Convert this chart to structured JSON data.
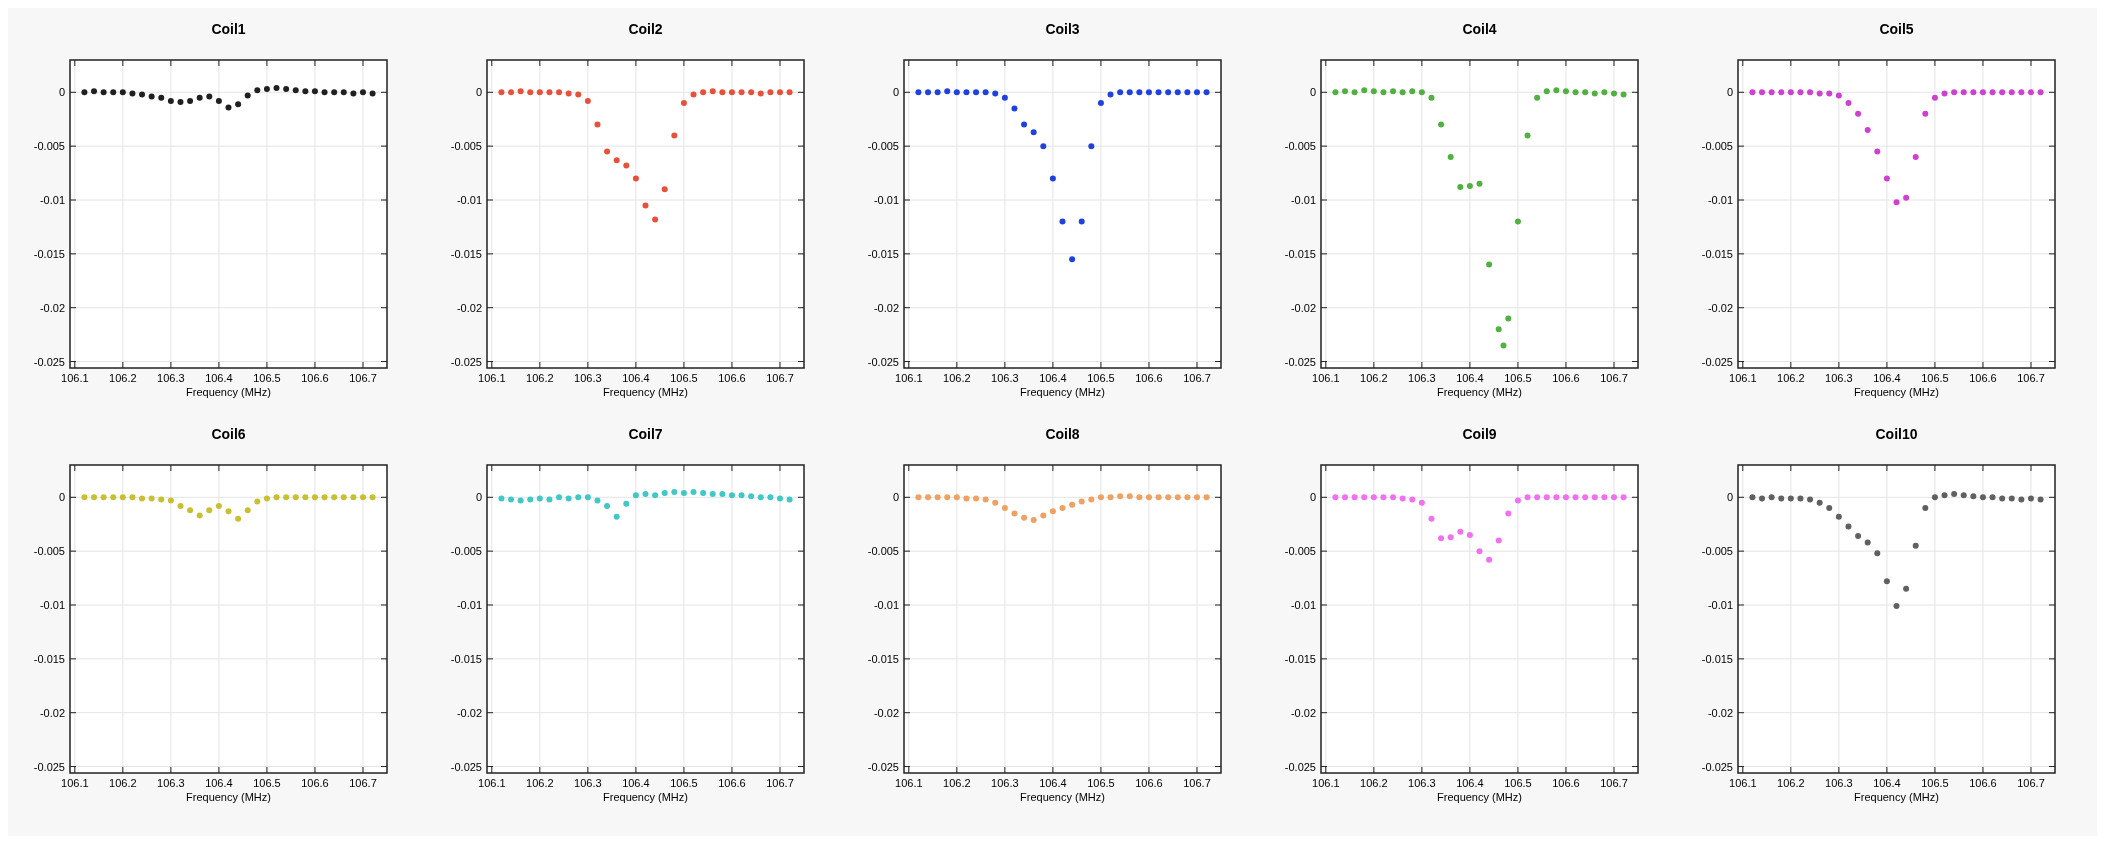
{
  "chart_data": [
    {
      "type": "scatter",
      "title": "Coil1",
      "xlabel": "Frequency (MHz)",
      "marker": "circle",
      "grid": true,
      "xlim": [
        106.09,
        106.75
      ],
      "ylim": [
        -0.0256,
        0.003
      ],
      "xticks": [
        106.1,
        106.2,
        106.3,
        106.4,
        106.5,
        106.6,
        106.7
      ],
      "yticks": [
        0,
        -0.005,
        -0.01,
        -0.015,
        -0.02,
        -0.025
      ],
      "x": [
        106.12,
        106.14,
        106.16,
        106.18,
        106.2,
        106.22,
        106.24,
        106.26,
        106.28,
        106.3,
        106.32,
        106.34,
        106.36,
        106.38,
        106.4,
        106.42,
        106.44,
        106.46,
        106.48,
        106.5,
        106.52,
        106.54,
        106.56,
        106.58,
        106.6,
        106.62,
        106.64,
        106.66,
        106.68,
        106.7,
        106.72
      ],
      "series": [
        {
          "color": "#202020",
          "values": [
            0,
            0.0001,
            0,
            0,
            0,
            -0.0001,
            -0.0002,
            -0.0004,
            -0.0005,
            -0.0008,
            -0.0009,
            -0.0008,
            -0.0005,
            -0.0004,
            -0.0008,
            -0.0014,
            -0.0011,
            -0.0003,
            0.0002,
            0.0003,
            0.0004,
            0.0003,
            0.0002,
            0.0001,
            0.0001,
            0,
            0,
            0,
            -0.0001,
            0,
            -0.0001
          ]
        }
      ]
    },
    {
      "type": "scatter",
      "title": "Coil2",
      "xlabel": "Frequency (MHz)",
      "marker": "circle",
      "grid": true,
      "xlim": [
        106.09,
        106.75
      ],
      "ylim": [
        -0.0256,
        0.003
      ],
      "xticks": [
        106.1,
        106.2,
        106.3,
        106.4,
        106.5,
        106.6,
        106.7
      ],
      "yticks": [
        0,
        -0.005,
        -0.01,
        -0.015,
        -0.02,
        -0.025
      ],
      "x": [
        106.12,
        106.14,
        106.16,
        106.18,
        106.2,
        106.22,
        106.24,
        106.26,
        106.28,
        106.3,
        106.32,
        106.34,
        106.36,
        106.38,
        106.4,
        106.42,
        106.44,
        106.46,
        106.48,
        106.5,
        106.52,
        106.54,
        106.56,
        106.58,
        106.6,
        106.62,
        106.64,
        106.66,
        106.68,
        106.7,
        106.72
      ],
      "series": [
        {
          "color": "#e8503a",
          "values": [
            0,
            0,
            0.0001,
            0,
            0,
            0,
            0,
            -0.0001,
            -0.0002,
            -0.0008,
            -0.003,
            -0.0055,
            -0.0063,
            -0.0068,
            -0.008,
            -0.0105,
            -0.0118,
            -0.009,
            -0.004,
            -0.001,
            -0.0002,
            0,
            0.0001,
            0,
            0,
            0,
            0,
            -0.0001,
            0,
            0,
            0
          ]
        }
      ]
    },
    {
      "type": "scatter",
      "title": "Coil3",
      "xlabel": "Frequency (MHz)",
      "marker": "circle",
      "grid": true,
      "xlim": [
        106.09,
        106.75
      ],
      "ylim": [
        -0.0256,
        0.003
      ],
      "xticks": [
        106.1,
        106.2,
        106.3,
        106.4,
        106.5,
        106.6,
        106.7
      ],
      "yticks": [
        0,
        -0.005,
        -0.01,
        -0.015,
        -0.02,
        -0.025
      ],
      "x": [
        106.12,
        106.14,
        106.16,
        106.18,
        106.2,
        106.22,
        106.24,
        106.26,
        106.28,
        106.3,
        106.32,
        106.34,
        106.36,
        106.38,
        106.4,
        106.42,
        106.44,
        106.46,
        106.48,
        106.5,
        106.52,
        106.54,
        106.56,
        106.58,
        106.6,
        106.62,
        106.64,
        106.66,
        106.68,
        106.7,
        106.72
      ],
      "series": [
        {
          "color": "#2040e0",
          "values": [
            0,
            0,
            0,
            0.0001,
            0,
            0,
            0,
            0,
            -0.0001,
            -0.0005,
            -0.0015,
            -0.003,
            -0.0037,
            -0.005,
            -0.008,
            -0.012,
            -0.0155,
            -0.012,
            -0.005,
            -0.001,
            -0.0002,
            0,
            0,
            0,
            0,
            0,
            0,
            0,
            0,
            0,
            0
          ]
        }
      ]
    },
    {
      "type": "scatter",
      "title": "Coil4",
      "xlabel": "Frequency (MHz)",
      "marker": "circle",
      "grid": true,
      "xlim": [
        106.09,
        106.75
      ],
      "ylim": [
        -0.0256,
        0.003
      ],
      "xticks": [
        106.1,
        106.2,
        106.3,
        106.4,
        106.5,
        106.6,
        106.7
      ],
      "yticks": [
        0,
        -0.005,
        -0.01,
        -0.015,
        -0.02,
        -0.025
      ],
      "x": [
        106.12,
        106.14,
        106.16,
        106.18,
        106.2,
        106.22,
        106.24,
        106.26,
        106.28,
        106.3,
        106.32,
        106.34,
        106.36,
        106.38,
        106.4,
        106.42,
        106.44,
        106.46,
        106.47,
        106.48,
        106.5,
        106.52,
        106.54,
        106.56,
        106.58,
        106.6,
        106.62,
        106.64,
        106.66,
        106.68,
        106.7,
        106.72
      ],
      "series": [
        {
          "color": "#50b040",
          "values": [
            0,
            0.0001,
            0,
            0.0002,
            0.0001,
            0,
            0.0001,
            0,
            0.0001,
            0,
            -0.0005,
            -0.003,
            -0.006,
            -0.0088,
            -0.0087,
            -0.0085,
            -0.016,
            -0.022,
            -0.0235,
            -0.021,
            -0.012,
            -0.004,
            -0.0005,
            0.0001,
            0.0002,
            0.0001,
            0,
            0,
            -0.0001,
            0,
            -0.0001,
            -0.0002
          ]
        }
      ]
    },
    {
      "type": "scatter",
      "title": "Coil5",
      "xlabel": "Frequency (MHz)",
      "marker": "circle",
      "grid": true,
      "xlim": [
        106.09,
        106.75
      ],
      "ylim": [
        -0.0256,
        0.003
      ],
      "xticks": [
        106.1,
        106.2,
        106.3,
        106.4,
        106.5,
        106.6,
        106.7
      ],
      "yticks": [
        0,
        -0.005,
        -0.01,
        -0.015,
        -0.02,
        -0.025
      ],
      "x": [
        106.12,
        106.14,
        106.16,
        106.18,
        106.2,
        106.22,
        106.24,
        106.26,
        106.28,
        106.3,
        106.32,
        106.34,
        106.36,
        106.38,
        106.4,
        106.42,
        106.44,
        106.46,
        106.48,
        106.5,
        106.52,
        106.54,
        106.56,
        106.58,
        106.6,
        106.62,
        106.64,
        106.66,
        106.68,
        106.7,
        106.72
      ],
      "series": [
        {
          "color": "#d040d0",
          "values": [
            0,
            0,
            0,
            0,
            0,
            0,
            0,
            -0.0001,
            -0.0001,
            -0.0003,
            -0.001,
            -0.002,
            -0.0035,
            -0.0055,
            -0.008,
            -0.0102,
            -0.0098,
            -0.006,
            -0.002,
            -0.0005,
            -0.0001,
            0,
            0,
            0,
            0,
            0,
            0,
            0,
            0,
            0,
            0
          ]
        }
      ]
    },
    {
      "type": "scatter",
      "title": "Coil6",
      "xlabel": "Frequency (MHz)",
      "marker": "circle",
      "grid": true,
      "xlim": [
        106.09,
        106.75
      ],
      "ylim": [
        -0.0256,
        0.003
      ],
      "xticks": [
        106.1,
        106.2,
        106.3,
        106.4,
        106.5,
        106.6,
        106.7
      ],
      "yticks": [
        0,
        -0.005,
        -0.01,
        -0.015,
        -0.02,
        -0.025
      ],
      "x": [
        106.12,
        106.14,
        106.16,
        106.18,
        106.2,
        106.22,
        106.24,
        106.26,
        106.28,
        106.3,
        106.32,
        106.34,
        106.36,
        106.38,
        106.4,
        106.42,
        106.44,
        106.46,
        106.48,
        106.5,
        106.52,
        106.54,
        106.56,
        106.58,
        106.6,
        106.62,
        106.64,
        106.66,
        106.68,
        106.7,
        106.72
      ],
      "series": [
        {
          "color": "#c8c030",
          "values": [
            0,
            0,
            0,
            0,
            0,
            0,
            -0.0001,
            -0.0001,
            -0.0002,
            -0.0003,
            -0.0008,
            -0.0012,
            -0.0017,
            -0.0012,
            -0.0008,
            -0.0013,
            -0.002,
            -0.0012,
            -0.0004,
            -0.0001,
            0,
            0,
            0,
            0,
            0,
            0,
            0,
            0,
            0,
            0,
            0
          ]
        }
      ]
    },
    {
      "type": "scatter",
      "title": "Coil7",
      "xlabel": "Frequency (MHz)",
      "marker": "circle",
      "grid": true,
      "xlim": [
        106.09,
        106.75
      ],
      "ylim": [
        -0.0256,
        0.003
      ],
      "xticks": [
        106.1,
        106.2,
        106.3,
        106.4,
        106.5,
        106.6,
        106.7
      ],
      "yticks": [
        0,
        -0.005,
        -0.01,
        -0.015,
        -0.02,
        -0.025
      ],
      "x": [
        106.12,
        106.14,
        106.16,
        106.18,
        106.2,
        106.22,
        106.24,
        106.26,
        106.28,
        106.3,
        106.32,
        106.34,
        106.36,
        106.38,
        106.4,
        106.42,
        106.44,
        106.46,
        106.48,
        106.5,
        106.52,
        106.54,
        106.56,
        106.58,
        106.6,
        106.62,
        106.64,
        106.66,
        106.68,
        106.7,
        106.72
      ],
      "series": [
        {
          "color": "#40c8c8",
          "values": [
            -0.0001,
            -0.0002,
            -0.0003,
            -0.0002,
            -0.0001,
            -0.0002,
            0,
            -0.0001,
            0,
            0,
            -0.0003,
            -0.0008,
            -0.0018,
            -0.0006,
            0.0002,
            0.0003,
            0.0002,
            0.0004,
            0.0005,
            0.0004,
            0.0005,
            0.0004,
            0.0003,
            0.0003,
            0.0002,
            0.0002,
            0.0001,
            0,
            0,
            -0.0001,
            -0.0002
          ]
        }
      ]
    },
    {
      "type": "scatter",
      "title": "Coil8",
      "xlabel": "Frequency (MHz)",
      "marker": "circle",
      "grid": true,
      "xlim": [
        106.09,
        106.75
      ],
      "ylim": [
        -0.0256,
        0.003
      ],
      "xticks": [
        106.1,
        106.2,
        106.3,
        106.4,
        106.5,
        106.6,
        106.7
      ],
      "yticks": [
        0,
        -0.005,
        -0.01,
        -0.015,
        -0.02,
        -0.025
      ],
      "x": [
        106.12,
        106.14,
        106.16,
        106.18,
        106.2,
        106.22,
        106.24,
        106.26,
        106.28,
        106.3,
        106.32,
        106.34,
        106.36,
        106.38,
        106.4,
        106.42,
        106.44,
        106.46,
        106.48,
        106.5,
        106.52,
        106.54,
        106.56,
        106.58,
        106.6,
        106.62,
        106.64,
        106.66,
        106.68,
        106.7,
        106.72
      ],
      "series": [
        {
          "color": "#f0a060",
          "values": [
            0,
            0,
            0,
            0,
            0,
            -0.0001,
            -0.0001,
            -0.0002,
            -0.0005,
            -0.001,
            -0.0015,
            -0.0019,
            -0.0021,
            -0.0017,
            -0.0013,
            -0.001,
            -0.0007,
            -0.0004,
            -0.0002,
            0,
            0,
            0.0001,
            0.0001,
            0,
            0,
            0,
            0,
            0,
            0,
            0,
            0
          ]
        }
      ]
    },
    {
      "type": "scatter",
      "title": "Coil9",
      "xlabel": "Frequency (MHz)",
      "marker": "circle",
      "grid": true,
      "xlim": [
        106.09,
        106.75
      ],
      "ylim": [
        -0.0256,
        0.003
      ],
      "xticks": [
        106.1,
        106.2,
        106.3,
        106.4,
        106.5,
        106.6,
        106.7
      ],
      "yticks": [
        0,
        -0.005,
        -0.01,
        -0.015,
        -0.02,
        -0.025
      ],
      "x": [
        106.12,
        106.14,
        106.16,
        106.18,
        106.2,
        106.22,
        106.24,
        106.26,
        106.28,
        106.3,
        106.32,
        106.34,
        106.36,
        106.38,
        106.4,
        106.42,
        106.44,
        106.46,
        106.48,
        106.5,
        106.52,
        106.54,
        106.56,
        106.58,
        106.6,
        106.62,
        106.64,
        106.66,
        106.68,
        106.7,
        106.72
      ],
      "series": [
        {
          "color": "#f070f0",
          "values": [
            0,
            0,
            0,
            0,
            0,
            0,
            0,
            -0.0001,
            -0.0002,
            -0.0005,
            -0.002,
            -0.0038,
            -0.0037,
            -0.0032,
            -0.0035,
            -0.005,
            -0.0058,
            -0.004,
            -0.0015,
            -0.0003,
            0,
            0,
            0,
            0,
            0,
            0,
            0,
            0,
            0,
            0,
            0
          ]
        }
      ]
    },
    {
      "type": "scatter",
      "title": "Coil10",
      "xlabel": "Frequency (MHz)",
      "marker": "circle",
      "grid": true,
      "xlim": [
        106.09,
        106.75
      ],
      "ylim": [
        -0.0256,
        0.003
      ],
      "xticks": [
        106.1,
        106.2,
        106.3,
        106.4,
        106.5,
        106.6,
        106.7
      ],
      "yticks": [
        0,
        -0.005,
        -0.01,
        -0.015,
        -0.02,
        -0.025
      ],
      "x": [
        106.12,
        106.14,
        106.16,
        106.18,
        106.2,
        106.22,
        106.24,
        106.26,
        106.28,
        106.3,
        106.32,
        106.34,
        106.36,
        106.38,
        106.4,
        106.42,
        106.44,
        106.46,
        106.48,
        106.5,
        106.52,
        106.54,
        106.56,
        106.58,
        106.6,
        106.62,
        106.64,
        106.66,
        106.68,
        106.7,
        106.72
      ],
      "series": [
        {
          "color": "#606060",
          "values": [
            0,
            -0.0001,
            0,
            -0.0001,
            -0.0001,
            -0.0001,
            -0.0002,
            -0.0005,
            -0.001,
            -0.0018,
            -0.0027,
            -0.0036,
            -0.0042,
            -0.0052,
            -0.0078,
            -0.0101,
            -0.0085,
            -0.0045,
            -0.001,
            0,
            0.0002,
            0.0003,
            0.0002,
            0.0001,
            0,
            0,
            -0.0001,
            -0.0001,
            -0.0002,
            -0.0001,
            -0.0002
          ]
        }
      ]
    }
  ]
}
